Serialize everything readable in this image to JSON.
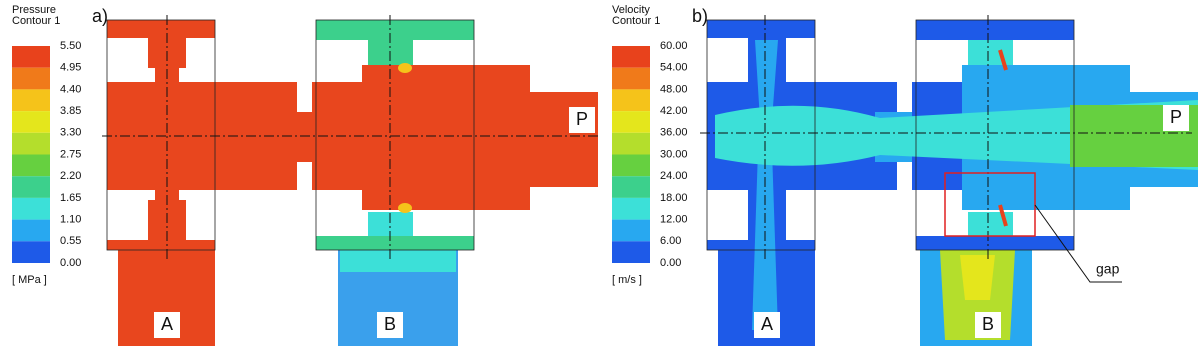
{
  "panels": [
    {
      "label": "a)",
      "legend": {
        "title": [
          "Pressure",
          "Contour 1"
        ],
        "ticks": [
          "5.50",
          "4.95",
          "4.40",
          "3.85",
          "3.30",
          "2.75",
          "2.20",
          "1.65",
          "1.10",
          "0.55",
          "0.00"
        ],
        "unit": "[ MPa ]",
        "colors": [
          "#e8421c",
          "#f07a1a",
          "#f5c31a",
          "#e4e61c",
          "#b4de2c",
          "#66d040",
          "#3cd08c",
          "#3ce0d8",
          "#28a8f0",
          "#1e5ae8"
        ]
      },
      "ports": [
        "A",
        "B",
        "P"
      ]
    },
    {
      "label": "b)",
      "legend": {
        "title": [
          "Velocity",
          "Contour 1"
        ],
        "ticks": [
          "60.00",
          "54.00",
          "48.00",
          "42.00",
          "36.00",
          "30.00",
          "24.00",
          "18.00",
          "12.00",
          "6.00",
          "0.00"
        ],
        "unit": "[ m/s ]",
        "colors": [
          "#e8421c",
          "#f07a1a",
          "#f5c31a",
          "#e4e61c",
          "#b4de2c",
          "#66d040",
          "#3cd08c",
          "#3ce0d8",
          "#28a8f0",
          "#1e5ae8"
        ]
      },
      "ports": [
        "A",
        "B",
        "P"
      ],
      "annotation": "gap"
    }
  ]
}
